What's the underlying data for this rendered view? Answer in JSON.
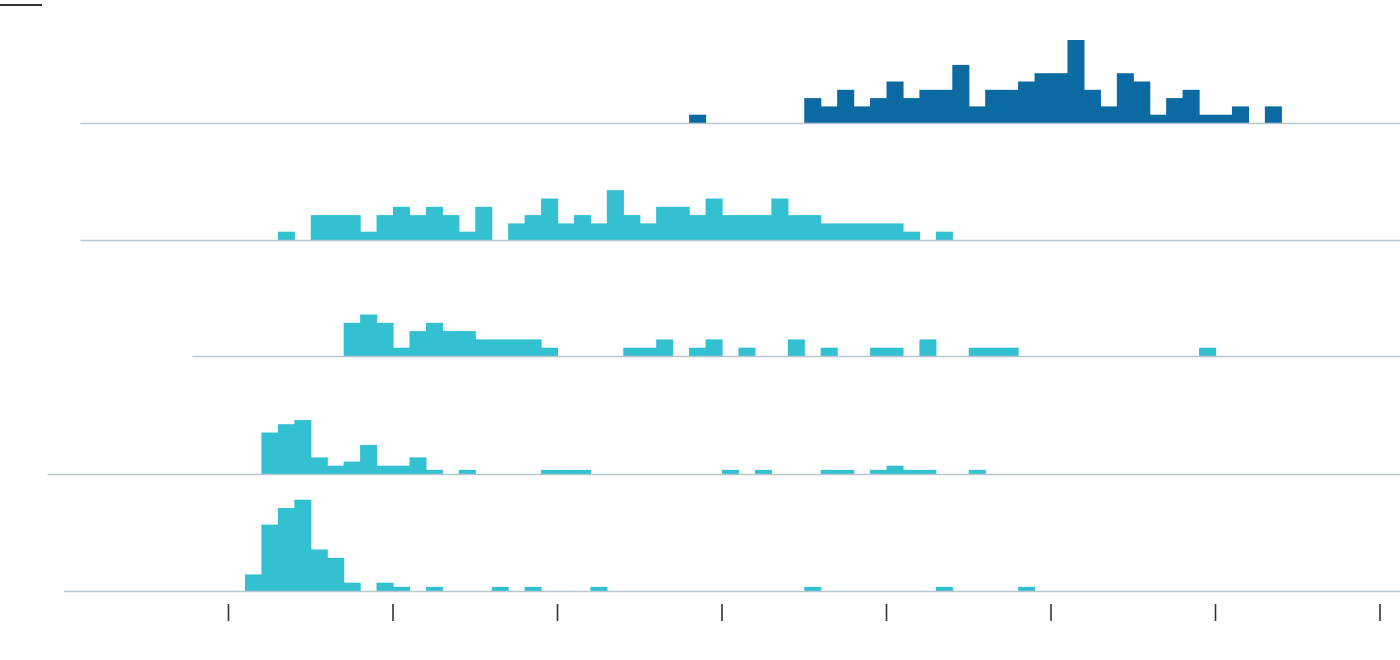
{
  "colors": {
    "highlight": "#0a6aa1",
    "series": "#33c1d1",
    "baseline": "#b8c7cf",
    "tick": "#333333",
    "corner_mark": "#333333"
  },
  "chart_data": {
    "type": "bar",
    "subtype": "ridgeline-histogram",
    "title": "",
    "xlabel": "",
    "ylabel": "",
    "x_ticks": [
      0,
      10,
      20,
      30,
      40,
      50,
      60,
      70
    ],
    "bin_width": 1,
    "xlim": [
      -8.3,
      70
    ],
    "ylim": [
      0,
      5.3
    ],
    "grid": false,
    "legend": "none",
    "series": [
      {
        "highlight": true,
        "baseline_start": -9,
        "bins": [
          [
            28,
            1
          ],
          [
            35,
            3
          ],
          [
            36,
            2
          ],
          [
            37,
            4
          ],
          [
            38,
            2
          ],
          [
            39,
            3
          ],
          [
            40,
            5
          ],
          [
            41,
            3
          ],
          [
            42,
            4
          ],
          [
            43,
            4
          ],
          [
            44,
            7
          ],
          [
            45,
            2
          ],
          [
            46,
            4
          ],
          [
            47,
            4
          ],
          [
            48,
            5
          ],
          [
            49,
            6
          ],
          [
            50,
            6
          ],
          [
            51,
            10
          ],
          [
            52,
            4
          ],
          [
            53,
            2
          ],
          [
            54,
            6
          ],
          [
            55,
            5
          ],
          [
            56,
            1
          ],
          [
            57,
            3
          ],
          [
            58,
            4
          ],
          [
            59,
            1
          ],
          [
            60,
            1
          ],
          [
            61,
            2
          ],
          [
            63,
            2
          ]
        ]
      },
      {
        "highlight": false,
        "baseline_start": -9,
        "bins": [
          [
            3,
            1
          ],
          [
            5,
            3
          ],
          [
            6,
            3
          ],
          [
            7,
            3
          ],
          [
            8,
            1
          ],
          [
            9,
            3
          ],
          [
            10,
            4
          ],
          [
            11,
            3
          ],
          [
            12,
            4
          ],
          [
            13,
            3
          ],
          [
            14,
            1
          ],
          [
            15,
            4
          ],
          [
            17,
            2
          ],
          [
            18,
            3
          ],
          [
            19,
            5
          ],
          [
            20,
            2
          ],
          [
            21,
            3
          ],
          [
            22,
            2
          ],
          [
            23,
            6
          ],
          [
            24,
            3
          ],
          [
            25,
            2
          ],
          [
            26,
            4
          ],
          [
            27,
            4
          ],
          [
            28,
            3
          ],
          [
            29,
            5
          ],
          [
            30,
            3
          ],
          [
            31,
            3
          ],
          [
            32,
            3
          ],
          [
            33,
            5
          ],
          [
            34,
            3
          ],
          [
            35,
            3
          ],
          [
            36,
            2
          ],
          [
            37,
            2
          ],
          [
            38,
            2
          ],
          [
            39,
            2
          ],
          [
            40,
            2
          ],
          [
            41,
            1
          ],
          [
            43,
            1
          ]
        ]
      },
      {
        "highlight": false,
        "baseline_start": -2.2,
        "bins": [
          [
            7,
            4
          ],
          [
            8,
            5
          ],
          [
            9,
            4
          ],
          [
            10,
            1
          ],
          [
            11,
            3
          ],
          [
            12,
            4
          ],
          [
            13,
            3
          ],
          [
            14,
            3
          ],
          [
            15,
            2
          ],
          [
            16,
            2
          ],
          [
            17,
            2
          ],
          [
            18,
            2
          ],
          [
            19,
            1
          ],
          [
            24,
            1
          ],
          [
            25,
            1
          ],
          [
            26,
            2
          ],
          [
            28,
            1
          ],
          [
            29,
            2
          ],
          [
            31,
            1
          ],
          [
            34,
            2
          ],
          [
            36,
            1
          ],
          [
            39,
            1
          ],
          [
            40,
            1
          ],
          [
            42,
            2
          ],
          [
            45,
            1
          ],
          [
            46,
            1
          ],
          [
            47,
            1
          ],
          [
            59,
            1
          ]
        ]
      },
      {
        "highlight": false,
        "baseline_start": -11,
        "bins": [
          [
            2,
            5
          ],
          [
            3,
            6
          ],
          [
            4,
            6.5
          ],
          [
            5,
            2
          ],
          [
            6,
            1
          ],
          [
            7,
            1.5
          ],
          [
            8,
            3.5
          ],
          [
            9,
            1
          ],
          [
            10,
            1
          ],
          [
            11,
            2
          ],
          [
            12,
            0.5
          ],
          [
            14,
            0.5
          ],
          [
            19,
            0.5
          ],
          [
            20,
            0.5
          ],
          [
            21,
            0.5
          ],
          [
            30,
            0.5
          ],
          [
            32,
            0.5
          ],
          [
            36,
            0.5
          ],
          [
            37,
            0.5
          ],
          [
            39,
            0.5
          ],
          [
            40,
            1
          ],
          [
            41,
            0.5
          ],
          [
            42,
            0.5
          ],
          [
            45,
            0.5
          ]
        ]
      },
      {
        "highlight": false,
        "baseline_start": -10,
        "bins": [
          [
            1,
            2
          ],
          [
            2,
            8
          ],
          [
            3,
            10
          ],
          [
            4,
            11
          ],
          [
            5,
            5
          ],
          [
            6,
            4
          ],
          [
            7,
            1
          ],
          [
            9,
            1
          ],
          [
            10,
            0.5
          ],
          [
            12,
            0.5
          ],
          [
            16,
            0.5
          ],
          [
            18,
            0.5
          ],
          [
            22,
            0.5
          ],
          [
            35,
            0.5
          ],
          [
            43,
            0.5
          ],
          [
            48,
            0.5
          ]
        ]
      }
    ]
  }
}
